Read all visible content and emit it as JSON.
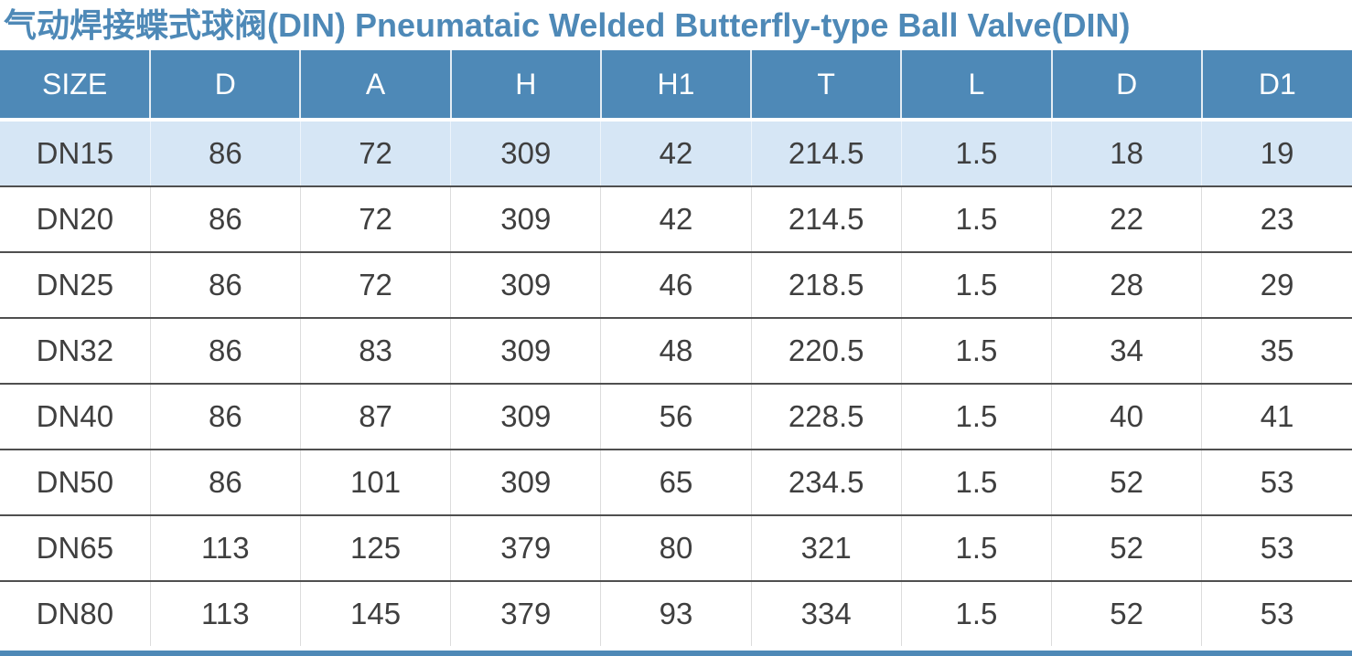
{
  "page": {
    "title": "气动焊接蝶式球阀(DIN) Pneumataic Welded Butterfly-type Ball Valve(DIN)"
  },
  "table": {
    "columns": [
      "SIZE",
      "D",
      "A",
      "H",
      "H1",
      "T",
      "L",
      "D",
      "D1"
    ],
    "rows": [
      [
        "DN15",
        "86",
        "72",
        "309",
        "42",
        "214.5",
        "1.5",
        "18",
        "19"
      ],
      [
        "DN20",
        "86",
        "72",
        "309",
        "42",
        "214.5",
        "1.5",
        "22",
        "23"
      ],
      [
        "DN25",
        "86",
        "72",
        "309",
        "46",
        "218.5",
        "1.5",
        "28",
        "29"
      ],
      [
        "DN32",
        "86",
        "83",
        "309",
        "48",
        "220.5",
        "1.5",
        "34",
        "35"
      ],
      [
        "DN40",
        "86",
        "87",
        "309",
        "56",
        "228.5",
        "1.5",
        "40",
        "41"
      ],
      [
        "DN50",
        "86",
        "101",
        "309",
        "65",
        "234.5",
        "1.5",
        "52",
        "53"
      ],
      [
        "DN65",
        "113",
        "125",
        "379",
        "80",
        "321",
        "1.5",
        "52",
        "53"
      ],
      [
        "DN80",
        "113",
        "145",
        "379",
        "93",
        "334",
        "1.5",
        "52",
        "53"
      ]
    ],
    "highlighted_row": "DN15"
  },
  "colors": {
    "accent_blue": "#4E89B7",
    "header_bg": "#4E89B7",
    "header_text": "#FFFFFF",
    "highlight_row_bg": "#D6E6F5",
    "row_divider": "#4F4F4F",
    "column_divider": "#DCDCDC",
    "body_text": "#3F3F3F"
  }
}
